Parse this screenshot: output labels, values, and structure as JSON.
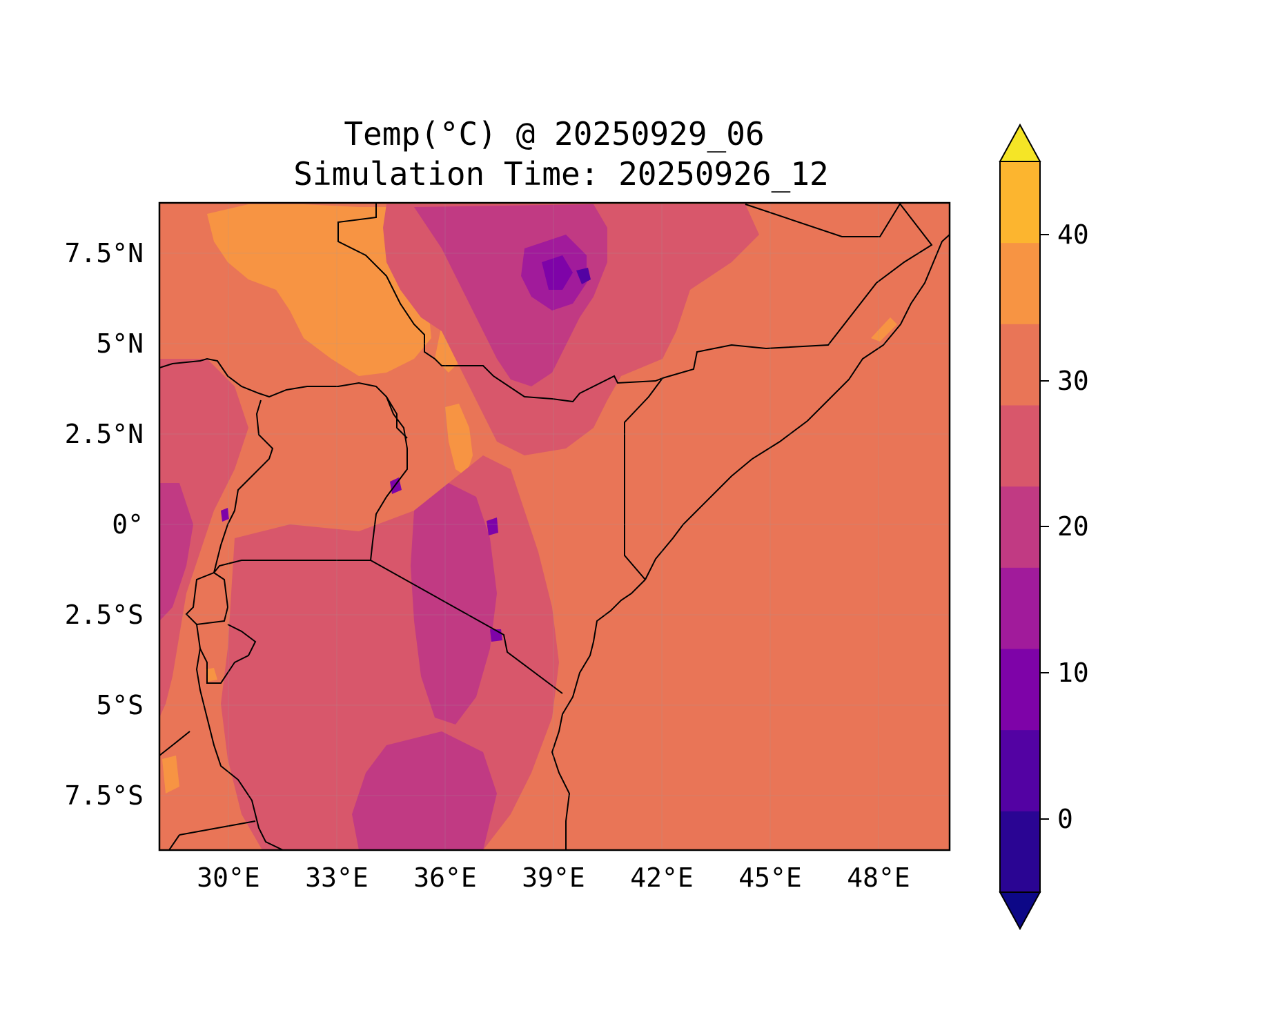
{
  "title": {
    "line1": "Temp(°C) @ 20250929_06",
    "line2": "Simulation Time: 20250926_12"
  },
  "map": {
    "x_ticks": [
      "30°E",
      "33°E",
      "36°E",
      "39°E",
      "42°E",
      "45°E",
      "48°E"
    ],
    "y_ticks": [
      "7.5°N",
      "5°N",
      "2.5°N",
      "0°",
      "2.5°S",
      "5°S",
      "7.5°S"
    ],
    "base_fill_color": "#e97557"
  },
  "colorbar": {
    "ticks": [
      "40",
      "30",
      "20",
      "10",
      "0"
    ],
    "levels": [
      -5,
      0,
      5,
      10,
      15,
      20,
      25,
      30,
      35,
      40,
      45
    ],
    "colors": [
      "#0d0887",
      "#2a0593",
      "#5302a3",
      "#7e03a8",
      "#a11b9b",
      "#c13a83",
      "#d8576b",
      "#e97557",
      "#f79443",
      "#fcb52f",
      "#f5e526"
    ],
    "extend": "both"
  }
}
